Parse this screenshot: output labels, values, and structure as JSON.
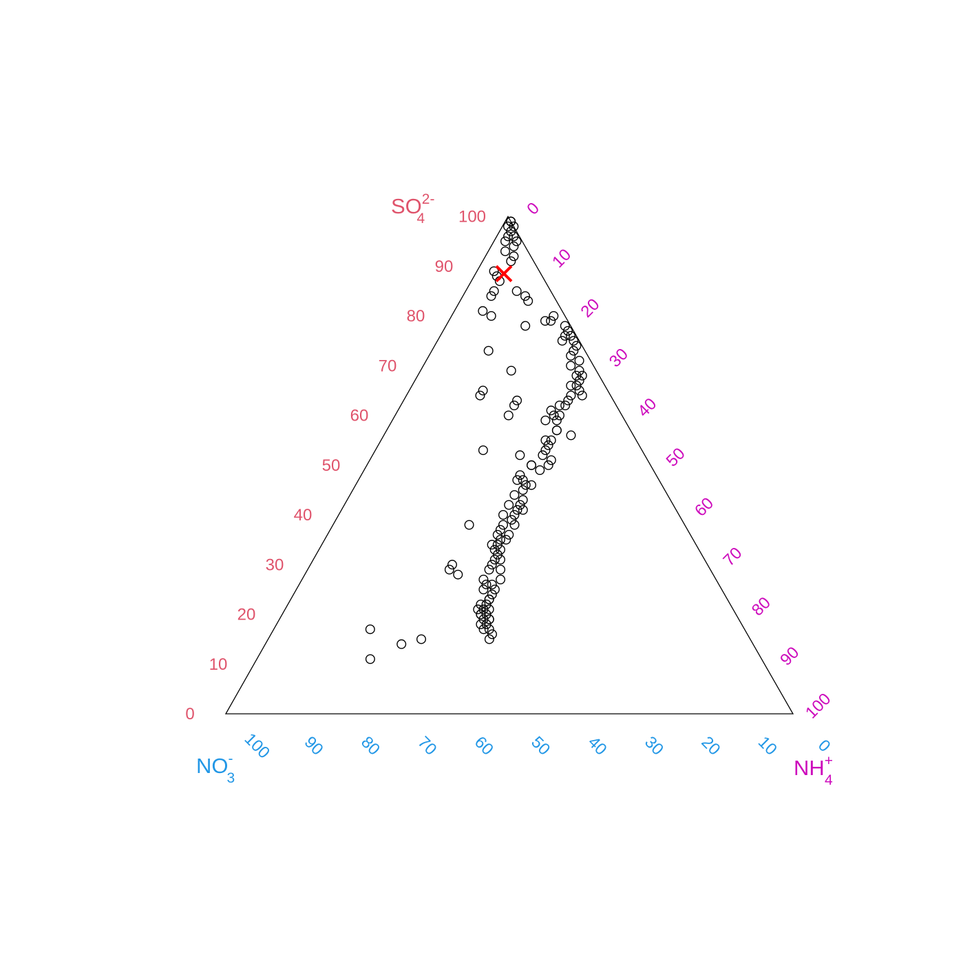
{
  "chart_data": {
    "type": "scatter",
    "subtype": "ternary",
    "axes": {
      "top": {
        "label": "SO",
        "subscript": "4",
        "superscript": "2-",
        "color": "#DF536B"
      },
      "left": {
        "label": "NO",
        "subscript": "3",
        "superscript": "-",
        "color": "#2297E6"
      },
      "right": {
        "label": "NH",
        "subscript": "4",
        "superscript": "+",
        "color": "#CD0BBC"
      }
    },
    "ticks": [
      "0",
      "10",
      "20",
      "30",
      "40",
      "50",
      "60",
      "70",
      "80",
      "90",
      "100"
    ],
    "limits": [
      0,
      100
    ],
    "grid": false,
    "marker": "open-circle",
    "highlight": {
      "so4": 88.5,
      "no3": 6.5,
      "nh4": 5,
      "marker": "x",
      "color": "#FF0000"
    },
    "points": [
      [
        99,
        0,
        1
      ],
      [
        99,
        0,
        1
      ],
      [
        99,
        0,
        1
      ],
      [
        98,
        0,
        2
      ],
      [
        98,
        1,
        1
      ],
      [
        97,
        1,
        2
      ],
      [
        96,
        2,
        2
      ],
      [
        96,
        1,
        3
      ],
      [
        95,
        1,
        4
      ],
      [
        95,
        3,
        2
      ],
      [
        94,
        2,
        4
      ],
      [
        93,
        4,
        3
      ],
      [
        92,
        3,
        5
      ],
      [
        91,
        4,
        5
      ],
      [
        89,
        8,
        3
      ],
      [
        88,
        8,
        4
      ],
      [
        87,
        8,
        5
      ],
      [
        85,
        6,
        9
      ],
      [
        84,
        5,
        11
      ],
      [
        83,
        5,
        12
      ],
      [
        85,
        10,
        5
      ],
      [
        84,
        11,
        5
      ],
      [
        81,
        14,
        5
      ],
      [
        80,
        13,
        7
      ],
      [
        78,
        8,
        14
      ],
      [
        73,
        17,
        10
      ],
      [
        69,
        15,
        16
      ],
      [
        65,
        22,
        13
      ],
      [
        64,
        23,
        13
      ],
      [
        63,
        17,
        20
      ],
      [
        62,
        18,
        20
      ],
      [
        60,
        20,
        20
      ],
      [
        53,
        28,
        19
      ],
      [
        52,
        22,
        26
      ],
      [
        50,
        21,
        29
      ],
      [
        38,
        38,
        24
      ],
      [
        30,
        45,
        25
      ],
      [
        29,
        46,
        25
      ],
      [
        28,
        45,
        27
      ],
      [
        15,
        58,
        27
      ],
      [
        14,
        62,
        24
      ],
      [
        17,
        66,
        17
      ],
      [
        11,
        69,
        20
      ],
      [
        80,
        2,
        18
      ],
      [
        79,
        3,
        18
      ],
      [
        78,
        1,
        21
      ],
      [
        77,
        1,
        22
      ],
      [
        76,
        1,
        23
      ],
      [
        76,
        2,
        22
      ],
      [
        75,
        1,
        24
      ],
      [
        75,
        3,
        22
      ],
      [
        74,
        1,
        25
      ],
      [
        73,
        2,
        25
      ],
      [
        72,
        3,
        25
      ],
      [
        71,
        2,
        27
      ],
      [
        70,
        4,
        26
      ],
      [
        69,
        3,
        28
      ],
      [
        68,
        4,
        28
      ],
      [
        68,
        3,
        29
      ],
      [
        67,
        4,
        29
      ],
      [
        66,
        5,
        29
      ],
      [
        65,
        5,
        30
      ],
      [
        64,
        7,
        29
      ],
      [
        64,
        5,
        31
      ],
      [
        63,
        8,
        29
      ],
      [
        62,
        10,
        28
      ],
      [
        61,
        12,
        27
      ],
      [
        60,
        12,
        28
      ],
      [
        59,
        14,
        27
      ],
      [
        57,
        13,
        30
      ],
      [
        56,
        11,
        33
      ],
      [
        55,
        15,
        30
      ],
      [
        55,
        16,
        29
      ],
      [
        54,
        16,
        30
      ],
      [
        53,
        17,
        30
      ],
      [
        52,
        18,
        30
      ],
      [
        51,
        17,
        32
      ],
      [
        50,
        18,
        32
      ],
      [
        50,
        21,
        29
      ],
      [
        49,
        20,
        31
      ],
      [
        48,
        24,
        28
      ],
      [
        47,
        25,
        28
      ],
      [
        47,
        24,
        29
      ],
      [
        46,
        24,
        30
      ],
      [
        46,
        23,
        31
      ],
      [
        45,
        25,
        30
      ],
      [
        44,
        27,
        29
      ],
      [
        43,
        26,
        31
      ],
      [
        42,
        27,
        31
      ],
      [
        41,
        28,
        31
      ],
      [
        41,
        27,
        32
      ],
      [
        40,
        29,
        31
      ],
      [
        39,
        30,
        31
      ],
      [
        38,
        30,
        32
      ],
      [
        38,
        32,
        30
      ],
      [
        37,
        33,
        30
      ],
      [
        36,
        34,
        30
      ],
      [
        35,
        34,
        31
      ],
      [
        35,
        33,
        32
      ],
      [
        34,
        35,
        31
      ],
      [
        34,
        36,
        30
      ],
      [
        33,
        35,
        32
      ],
      [
        33,
        36,
        31
      ],
      [
        32,
        36,
        32
      ],
      [
        31,
        37,
        32
      ],
      [
        30,
        38,
        32
      ],
      [
        29,
        37,
        34
      ],
      [
        27,
        38,
        35
      ],
      [
        26,
        40,
        34
      ],
      [
        26,
        41,
        33
      ],
      [
        25,
        40,
        35
      ],
      [
        24,
        41,
        35
      ],
      [
        23,
        42,
        35
      ],
      [
        22,
        43,
        35
      ],
      [
        21,
        43,
        36
      ],
      [
        21,
        45,
        34
      ],
      [
        20,
        45,
        35
      ],
      [
        19,
        44,
        37
      ],
      [
        19,
        45,
        36
      ],
      [
        18,
        45,
        37
      ],
      [
        18,
        46,
        36
      ],
      [
        17,
        45,
        38
      ],
      [
        16,
        45,
        39
      ],
      [
        15,
        46,
        39
      ],
      [
        79,
        4,
        17
      ],
      [
        66,
        6,
        28
      ],
      [
        62,
        9,
        29
      ],
      [
        60,
        11,
        29
      ],
      [
        59,
        12,
        29
      ],
      [
        57,
        13,
        30
      ],
      [
        42,
        29,
        29
      ],
      [
        40,
        31,
        29
      ],
      [
        36,
        32,
        32
      ],
      [
        31,
        36,
        33
      ],
      [
        29,
        39,
        32
      ],
      [
        27,
        41,
        32
      ],
      [
        25,
        42,
        33
      ],
      [
        23,
        42,
        35
      ],
      [
        22,
        44,
        34
      ],
      [
        21,
        44,
        35
      ],
      [
        20,
        45,
        35
      ],
      [
        20,
        44,
        36
      ],
      [
        19,
        44,
        37
      ],
      [
        17,
        46,
        37
      ]
    ]
  }
}
